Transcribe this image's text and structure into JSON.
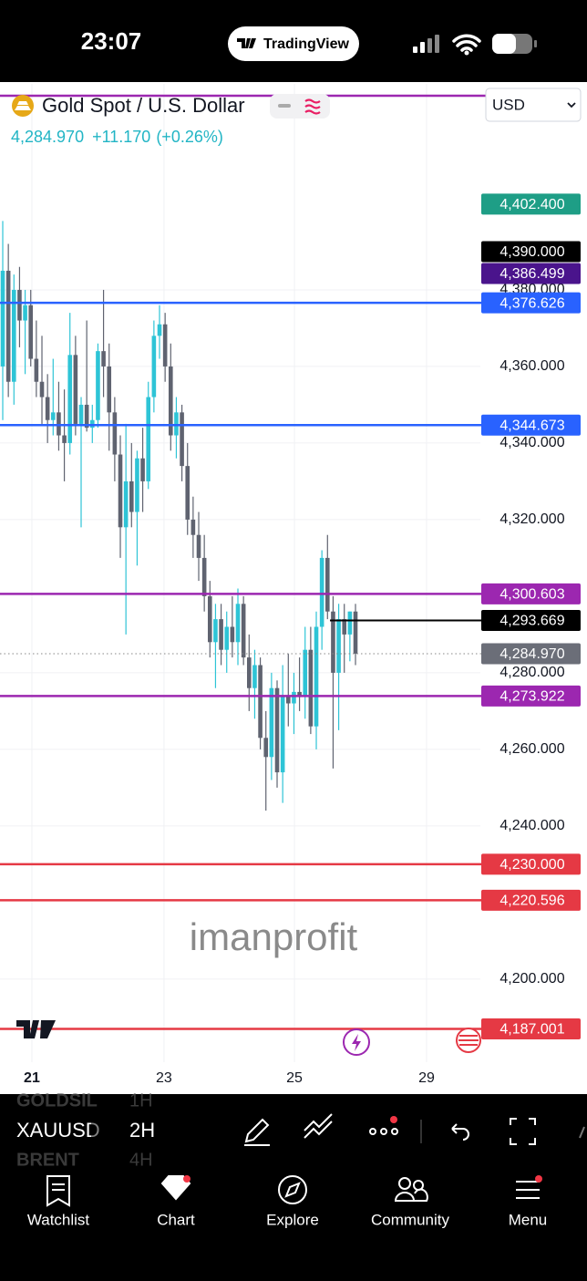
{
  "status_bar": {
    "time": "23:07",
    "app": "TradingView"
  },
  "header": {
    "symbol": "Gold Spot / U.S. Dollar",
    "currency": "USD",
    "price": "4,284.970",
    "change": "+11.170",
    "change_percent": "(+0.26%)"
  },
  "watermark": "imanprofit",
  "chart_data": {
    "type": "candlestick",
    "up_color": "#2ec4d6",
    "down_color": "#5f6370",
    "grid": true,
    "x": [
      0,
      1,
      2,
      3,
      4,
      5,
      6,
      7,
      8,
      9,
      10,
      11,
      12,
      13,
      14,
      15,
      16,
      17,
      18,
      19,
      20,
      21,
      22,
      23,
      24,
      25,
      26,
      27,
      28,
      29,
      30,
      31,
      32,
      33,
      34,
      35,
      36,
      37,
      38,
      39,
      40,
      41,
      42,
      43,
      44,
      45,
      46,
      47,
      48,
      49,
      50,
      51,
      52,
      53,
      54,
      55,
      56,
      57,
      58,
      59,
      60,
      61,
      62,
      63
    ],
    "open": [
      4360,
      4385,
      4356,
      4380,
      4372,
      4376,
      4362,
      4356,
      4352,
      4346,
      4348,
      4342,
      4340,
      4363,
      4345,
      4350,
      4344,
      4346,
      4364,
      4360,
      4348,
      4337,
      4318,
      4330,
      4322,
      4336,
      4330,
      4352,
      4368,
      4371,
      4360,
      4342,
      4348,
      4334,
      4320,
      4316,
      4310,
      4300,
      4288,
      4294,
      4286,
      4292,
      4288,
      4298,
      4284,
      4276,
      4282,
      4263,
      4258,
      4276,
      4254,
      4274,
      4272,
      4275,
      4274,
      4286,
      4266,
      4292,
      4310,
      4296,
      4280,
      4294,
      4290,
      4296
    ],
    "high": [
      4398,
      4392,
      4384,
      4386,
      4380,
      4380,
      4372,
      4368,
      4358,
      4362,
      4356,
      4354,
      4374,
      4368,
      4352,
      4372,
      4350,
      4366,
      4380,
      4366,
      4352,
      4342,
      4345,
      4340,
      4338,
      4344,
      4356,
      4372,
      4376,
      4374,
      4366,
      4352,
      4350,
      4340,
      4326,
      4322,
      4316,
      4304,
      4298,
      4298,
      4296,
      4300,
      4302,
      4300,
      4290,
      4286,
      4284,
      4270,
      4280,
      4278,
      4282,
      4285,
      4280,
      4284,
      4292,
      4292,
      4296,
      4312,
      4316,
      4300,
      4298,
      4298,
      4296,
      4298
    ],
    "low": [
      4346,
      4352,
      4350,
      4365,
      4358,
      4360,
      4352,
      4345,
      4340,
      4342,
      4338,
      4330,
      4337,
      4342,
      4318,
      4343,
      4340,
      4344,
      4352,
      4338,
      4330,
      4310,
      4290,
      4318,
      4308,
      4322,
      4328,
      4348,
      4362,
      4356,
      4338,
      4336,
      4330,
      4316,
      4310,
      4304,
      4296,
      4284,
      4276,
      4282,
      4280,
      4284,
      4282,
      4282,
      4270,
      4268,
      4260,
      4244,
      4252,
      4250,
      4246,
      4266,
      4264,
      4270,
      4268,
      4264,
      4260,
      4286,
      4294,
      4255,
      4265,
      4280,
      4283,
      4282
    ],
    "close": [
      4385,
      4356,
      4380,
      4372,
      4376,
      4362,
      4356,
      4352,
      4346,
      4348,
      4342,
      4340,
      4363,
      4345,
      4350,
      4344,
      4346,
      4364,
      4360,
      4348,
      4337,
      4318,
      4330,
      4322,
      4336,
      4330,
      4352,
      4368,
      4371,
      4360,
      4342,
      4348,
      4334,
      4320,
      4316,
      4310,
      4300,
      4288,
      4294,
      4286,
      4292,
      4288,
      4298,
      4284,
      4276,
      4282,
      4263,
      4258,
      4276,
      4254,
      4274,
      4272,
      4275,
      4274,
      4286,
      4266,
      4292,
      4310,
      4296,
      4280,
      4294,
      4290,
      4296,
      4285
    ],
    "xlim": [
      -0.49,
      85.3
    ],
    "xticks": [
      {
        "value": 5.2,
        "label": "21"
      },
      {
        "value": 28.8,
        "label": "23"
      },
      {
        "value": 52.1,
        "label": "25"
      },
      {
        "value": 75.7,
        "label": "29"
      }
    ],
    "ylim": [
      4178.3,
      4433.8
    ],
    "yticks": [
      {
        "value": 4380,
        "label": "4,380.000"
      },
      {
        "value": 4360,
        "label": "4,360.000"
      },
      {
        "value": 4340,
        "label": "4,340.000"
      },
      {
        "value": 4320,
        "label": "4,320.000"
      },
      {
        "value": 4280,
        "label": "4,280.000"
      },
      {
        "value": 4260,
        "label": "4,260.000"
      },
      {
        "value": 4240,
        "label": "4,240.000"
      },
      {
        "value": 4200,
        "label": "4,200.000"
      }
    ],
    "levels": [
      {
        "value": 4430.7,
        "color": "#9c27b0",
        "line": "solid"
      },
      {
        "value": 4402.4,
        "label": "4,402.400",
        "color": "#1e9e86",
        "line": "none"
      },
      {
        "value": 4390,
        "label": "4,390.000",
        "color": "#000000",
        "line": "none"
      },
      {
        "value": 4386.499,
        "label": "4,386.499",
        "color": "#4a148c",
        "line": "none"
      },
      {
        "value": 4376.626,
        "label": "4,376.626",
        "color": "#2962ff",
        "line": "solid"
      },
      {
        "value": 4344.673,
        "label": "4,344.673",
        "color": "#2962ff",
        "line": "solid"
      },
      {
        "value": 4300.603,
        "label": "4,300.603",
        "color": "#9c27b0",
        "line": "solid"
      },
      {
        "value": 4293.669,
        "label": "4,293.669",
        "color": "#000000",
        "line": "short"
      },
      {
        "value": 4284.97,
        "label": "4,284.970",
        "color": "#6b6e78",
        "line": "dotted"
      },
      {
        "value": 4273.922,
        "label": "4,273.922",
        "color": "#9c27b0",
        "line": "solid"
      },
      {
        "value": 4230,
        "label": "4,230.000",
        "color": "#e53944",
        "line": "solid"
      },
      {
        "value": 4220.596,
        "label": "4,220.596",
        "color": "#e53944",
        "line": "solid"
      },
      {
        "value": 4187.001,
        "label": "4,187.001",
        "color": "#e53944",
        "line": "solid"
      }
    ]
  },
  "toolbar": {
    "symbol": "XAUUSD",
    "interval": "2H",
    "symbol_above": "GOLDSIL",
    "symbol_below": "BRENT",
    "interval_above": "1H",
    "interval_below": "4H"
  },
  "nav": [
    "Watchlist",
    "Chart",
    "Explore",
    "Community",
    "Menu"
  ]
}
